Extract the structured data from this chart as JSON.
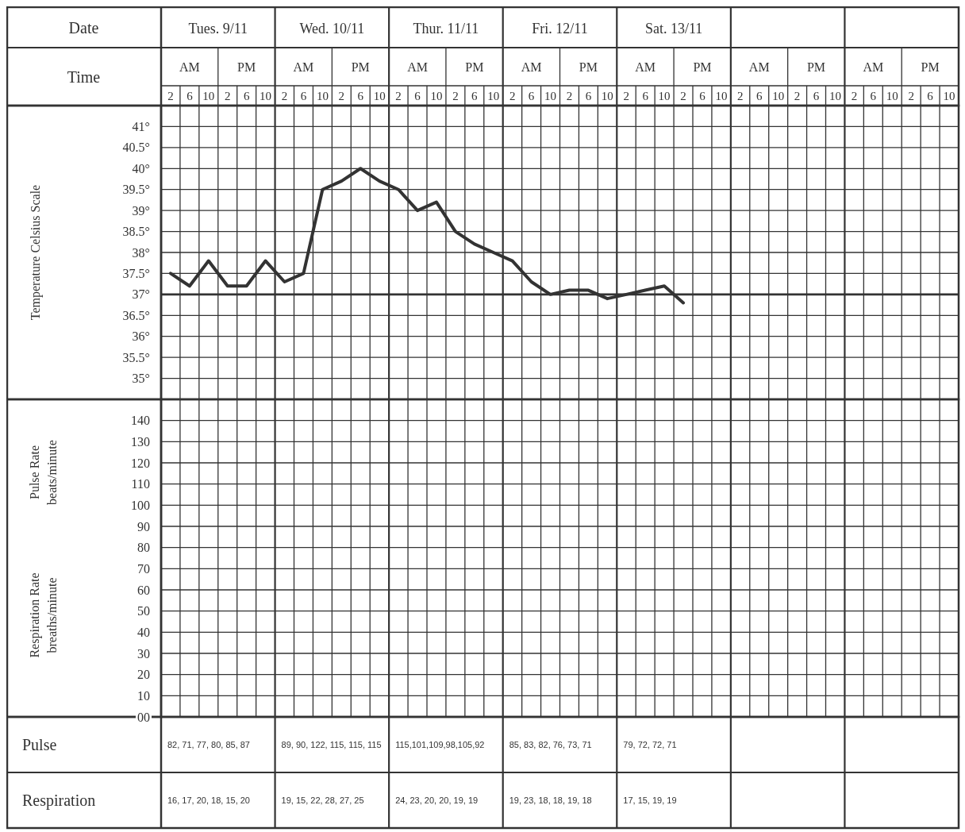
{
  "chart_data": [
    {
      "type": "line",
      "ylabel": "Temperature Celsius Scale",
      "categories": [
        "2",
        "6",
        "10",
        "2",
        "6",
        "10",
        "2",
        "6",
        "10",
        "2",
        "6",
        "10",
        "2",
        "6",
        "10",
        "2",
        "6",
        "10",
        "2",
        "6",
        "10",
        "2",
        "6",
        "10",
        "2",
        "6",
        "10",
        "2",
        "6",
        "10",
        "2",
        "6",
        "10",
        "2",
        "6",
        "10",
        "2",
        "6",
        "10",
        "2",
        "6",
        "10"
      ],
      "series": [
        {
          "color": "#333333",
          "values": [
            37.5,
            37.2,
            37.8,
            37.2,
            37.2,
            37.8,
            37.3,
            37.5,
            39.5,
            39.7,
            40.0,
            39.7,
            39.5,
            39.0,
            39.2,
            38.5,
            38.2,
            38.0,
            37.8,
            37.3,
            37.0,
            37.1,
            37.1,
            36.9,
            37.0,
            37.1,
            37.2,
            36.8,
            null,
            null,
            null,
            null,
            null,
            null,
            null,
            null,
            null,
            null,
            null,
            null,
            null,
            null
          ]
        }
      ],
      "ylim": [
        34.5,
        41.5
      ],
      "yticks": [
        {
          "value": 35,
          "label": "35°"
        },
        {
          "value": 35.5,
          "label": "35.5°"
        },
        {
          "value": 36,
          "label": "36°"
        },
        {
          "value": 36.5,
          "label": "36.5°"
        },
        {
          "value": 37,
          "label": "37°"
        },
        {
          "value": 37.5,
          "label": "37.5°"
        },
        {
          "value": 38,
          "label": "38°"
        },
        {
          "value": 38.5,
          "label": "38.5°"
        },
        {
          "value": 39,
          "label": "39°"
        },
        {
          "value": 39.5,
          "label": "39.5°"
        },
        {
          "value": 40,
          "label": "40°"
        },
        {
          "value": 40.5,
          "label": "40.5°"
        },
        {
          "value": 41,
          "label": "41°"
        }
      ],
      "ref_lines": [
        {
          "axis": "y",
          "value": 37,
          "color": "#333333"
        }
      ],
      "grid": true,
      "marker": "none",
      "line_style": "solid",
      "annotations": [
        "Date",
        "Time",
        "Tues. 9/11",
        "Wed. 10/11",
        "Thur. 11/11",
        "Fri. 12/11",
        "Sat. 13/11",
        "AM",
        "PM"
      ]
    },
    {
      "type": "line",
      "ylabel": "Pulse Rate\nbeats/minute",
      "categories": [
        null,
        null,
        null,
        null,
        null,
        null,
        null,
        null,
        null,
        null,
        null,
        null,
        null,
        null,
        null,
        null,
        null,
        null,
        null,
        null,
        null,
        null,
        null,
        null,
        null,
        null,
        null,
        null,
        null,
        null,
        null,
        null,
        null,
        null,
        null,
        null,
        null,
        null,
        null,
        null,
        null,
        null
      ],
      "ylim": [
        0,
        150
      ],
      "yticks": [
        {
          "value": 0,
          "label": "00"
        },
        10,
        20,
        30,
        40,
        50,
        60,
        70,
        80,
        90,
        100,
        110,
        120,
        130,
        140
      ],
      "grid": true,
      "tick_labels": "y",
      "annotations": [
        "Respiration Rate\nbreaths/minute",
        "Pulse",
        "82, 71, 77, 80, 85, 87",
        "89, 90, 122, 115, 115, 115",
        "115,101,109,98,105,92",
        "85, 83, 82, 76, 73, 71",
        "79, 72, 72, 71",
        "Respiration",
        "16, 17, 20, 18, 15, 20",
        "19, 15, 22, 28, 27, 25",
        "24, 23, 20, 20, 19, 19",
        "19, 23, 18, 18, 19, 18",
        "17, 15, 19, 19"
      ]
    }
  ]
}
